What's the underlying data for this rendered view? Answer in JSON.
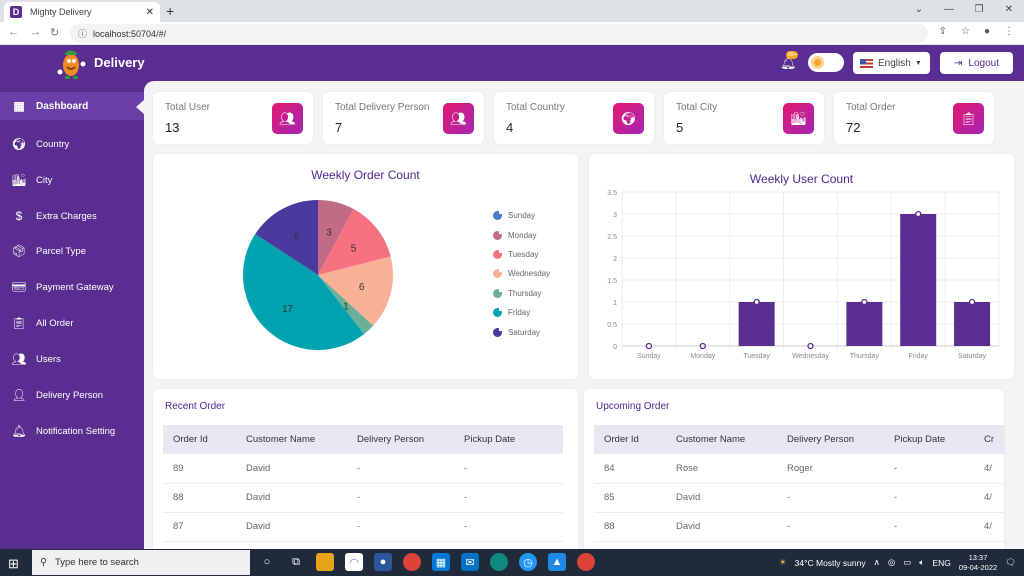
{
  "browser": {
    "tab_title": "Mighty Delivery",
    "url": "localhost:50704/#/"
  },
  "header": {
    "brand": "Delivery",
    "notification_badge": "99+",
    "language": "English",
    "logout_label": "Logout"
  },
  "sidebar": {
    "items": [
      {
        "label": "Dashboard",
        "icon": "dashboard-icon",
        "active": true
      },
      {
        "label": "Country",
        "icon": "globe-icon"
      },
      {
        "label": "City",
        "icon": "city-icon"
      },
      {
        "label": "Extra Charges",
        "icon": "extra-charges-icon"
      },
      {
        "label": "Parcel Type",
        "icon": "parcel-icon"
      },
      {
        "label": "Payment Gateway",
        "icon": "payment-icon"
      },
      {
        "label": "All Order",
        "icon": "clipboard-icon"
      },
      {
        "label": "Users",
        "icon": "users-icon"
      },
      {
        "label": "Delivery Person",
        "icon": "delivery-person-icon"
      },
      {
        "label": "Notification Setting",
        "icon": "bell-icon"
      }
    ]
  },
  "stats": [
    {
      "label": "Total User",
      "value": "13",
      "icon": "users-icon"
    },
    {
      "label": "Total Delivery Person",
      "value": "7",
      "icon": "users-icon"
    },
    {
      "label": "Total Country",
      "value": "4",
      "icon": "globe-icon"
    },
    {
      "label": "Total City",
      "value": "5",
      "icon": "city-icon"
    },
    {
      "label": "Total Order",
      "value": "72",
      "icon": "clipboard-icon"
    }
  ],
  "chart_data": [
    {
      "type": "pie",
      "title": "Weekly Order Count",
      "categories": [
        "Sunday",
        "Monday",
        "Tuesday",
        "Wednesday",
        "Thursday",
        "Friday",
        "Saturday"
      ],
      "values": [
        0,
        3,
        5,
        6,
        1,
        17,
        6
      ],
      "colors": [
        "#4a7bd0",
        "#c06c84",
        "#f67280",
        "#f8b195",
        "#6aaf9a",
        "#00a3af",
        "#4b3a9e"
      ],
      "legend": "right"
    },
    {
      "type": "bar",
      "title": "Weekly User Count",
      "categories": [
        "Sunday",
        "Monday",
        "Tuesday",
        "Wednesday",
        "Thursday",
        "Friday",
        "Saturday"
      ],
      "values": [
        0,
        0,
        1,
        0,
        1,
        3,
        1
      ],
      "ylim": [
        0,
        3.5
      ],
      "yticks": [
        "0",
        "0.5",
        "1",
        "1.5",
        "2",
        "2.5",
        "3",
        "3.5"
      ],
      "grid": true,
      "color": "#5a2d91"
    }
  ],
  "recent_order": {
    "title": "Recent Order",
    "columns": [
      "Order Id",
      "Customer Name",
      "Delivery Person",
      "Pickup Date"
    ],
    "rows": [
      [
        "89",
        "David",
        "-",
        "-"
      ],
      [
        "88",
        "David",
        "-",
        "-"
      ],
      [
        "87",
        "David",
        "-",
        "-"
      ]
    ]
  },
  "upcoming_order": {
    "title": "Upcoming Order",
    "columns": [
      "Order Id",
      "Customer Name",
      "Delivery Person",
      "Pickup Date",
      "Cr"
    ],
    "rows": [
      [
        "84",
        "Rose",
        "Roger",
        "-",
        "4/"
      ],
      [
        "85",
        "David",
        "-",
        "-",
        "4/"
      ],
      [
        "88",
        "David",
        "-",
        "-",
        "4/"
      ]
    ]
  },
  "taskbar": {
    "search_placeholder": "Type here to search",
    "weather": "34°C  Mostly sunny",
    "lang": "ENG",
    "time": "13:37",
    "date": "09-04-2022"
  }
}
